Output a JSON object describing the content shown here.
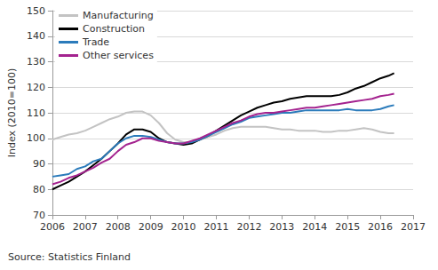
{
  "chart_data": {
    "type": "line",
    "y_label": "Index (2010=100)",
    "source": "Source: Statistics Finland",
    "x": [
      2006,
      2006.25,
      2006.5,
      2006.75,
      2007,
      2007.25,
      2007.5,
      2007.75,
      2008,
      2008.25,
      2008.5,
      2008.75,
      2009,
      2009.25,
      2009.5,
      2009.75,
      2010,
      2010.25,
      2010.5,
      2010.75,
      2011,
      2011.25,
      2011.5,
      2011.75,
      2012,
      2012.25,
      2012.5,
      2012.75,
      2013,
      2013.25,
      2013.5,
      2013.75,
      2014,
      2014.25,
      2014.5,
      2014.75,
      2015,
      2015.25,
      2015.5,
      2015.75,
      2016,
      2016.25,
      2016.42
    ],
    "series": [
      {
        "name": "Manufacturing",
        "color": "#c3c3c3",
        "values": [
          99.5,
          100.5,
          101.5,
          102,
          103,
          104.5,
          106,
          107.5,
          108.5,
          110,
          110.5,
          110.5,
          109,
          106,
          102,
          99.5,
          98.5,
          98.5,
          99.5,
          100.5,
          101.5,
          103,
          104,
          104.5,
          104.5,
          104.5,
          104.5,
          104,
          103.5,
          103.5,
          103,
          103,
          103,
          102.5,
          102.5,
          103,
          103,
          103.5,
          104,
          103.5,
          102.5,
          102,
          102
        ]
      },
      {
        "name": "Construction",
        "color": "#000000",
        "values": [
          80,
          81.5,
          83,
          85,
          87,
          89.5,
          92,
          95,
          98,
          101.5,
          103.5,
          103.5,
          102.5,
          100,
          98.5,
          98,
          97.5,
          98,
          99.5,
          101,
          103,
          105,
          107,
          109,
          110.5,
          112,
          113,
          114,
          114.5,
          115.5,
          116,
          116.5,
          116.5,
          116.5,
          116.5,
          117,
          118,
          119.5,
          120.5,
          122,
          123.5,
          124.5,
          125.5
        ]
      },
      {
        "name": "Trade",
        "color": "#2b7bbb",
        "values": [
          85,
          85.5,
          86,
          88,
          89,
          91,
          92,
          95,
          98,
          100,
          101,
          101,
          100.5,
          99.5,
          98.5,
          98,
          98,
          98.5,
          99.5,
          101,
          102.5,
          104,
          105.5,
          106.5,
          108,
          108.5,
          109,
          109.5,
          110,
          110,
          110.5,
          111,
          111,
          111,
          111,
          111,
          111.5,
          111,
          111,
          111,
          111.5,
          112.5,
          113
        ]
      },
      {
        "name": "Other services",
        "color": "#a4238f",
        "values": [
          82,
          83,
          84.5,
          85.5,
          87,
          88.5,
          90.5,
          92,
          95,
          97.5,
          98.5,
          100,
          100,
          99,
          98.5,
          98,
          98,
          99,
          100,
          101.5,
          103,
          104.5,
          106,
          107,
          108.5,
          109.5,
          110,
          110,
          110.5,
          111,
          111.5,
          112,
          112,
          112.5,
          113,
          113.5,
          114,
          114.5,
          115,
          115.5,
          116.5,
          117,
          117.5
        ]
      }
    ],
    "xlim": [
      2006,
      2017
    ],
    "xticks": [
      2006,
      2007,
      2008,
      2009,
      2010,
      2011,
      2012,
      2013,
      2014,
      2015,
      2016,
      2017
    ],
    "ylim": [
      70,
      150
    ],
    "yticks": [
      70,
      80,
      90,
      100,
      110,
      120,
      130,
      140,
      150
    ],
    "grid": true,
    "legend": "top-left"
  }
}
